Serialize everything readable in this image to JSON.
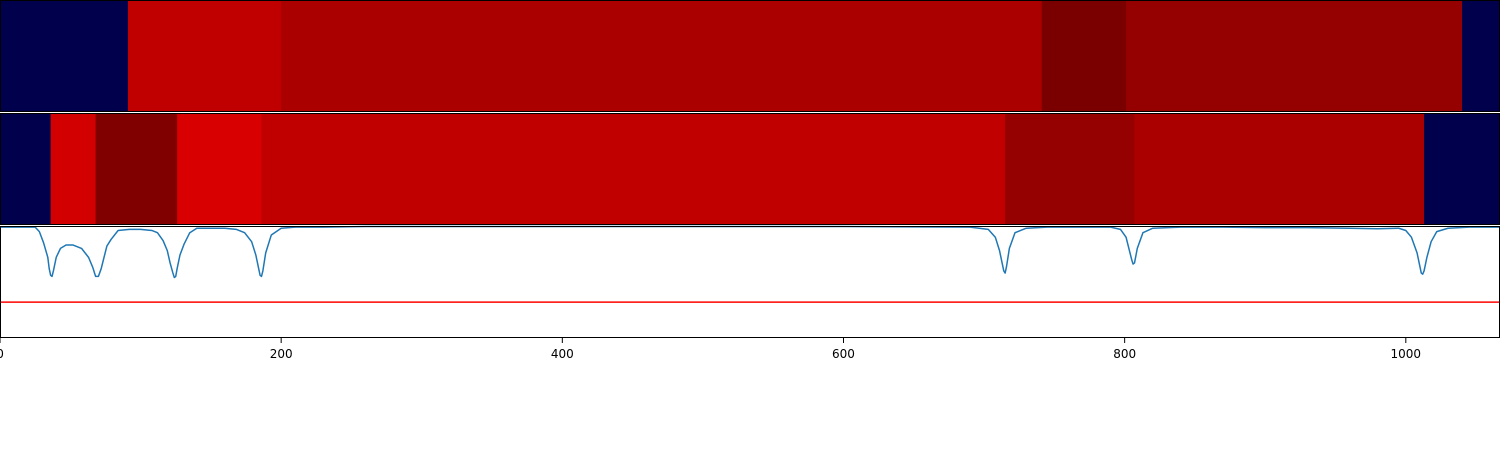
{
  "chart_data": [
    {
      "type": "heatmap",
      "panel": "top-strip",
      "xlim": [
        0,
        1067
      ],
      "colormap": "seismic",
      "segments": [
        {
          "x0": 0,
          "x1": 91,
          "color": "#00004c"
        },
        {
          "x0": 91,
          "x1": 200,
          "color": "#c00000"
        },
        {
          "x0": 200,
          "x1": 741,
          "color": "#ab0000"
        },
        {
          "x0": 741,
          "x1": 801,
          "color": "#7a0000"
        },
        {
          "x0": 801,
          "x1": 1040,
          "color": "#950000"
        },
        {
          "x0": 1040,
          "x1": 1067,
          "color": "#00004c"
        }
      ]
    },
    {
      "type": "heatmap",
      "panel": "middle-strip",
      "xlim": [
        0,
        1067
      ],
      "colormap": "seismic",
      "segments": [
        {
          "x0": 0,
          "x1": 36,
          "color": "#00004c"
        },
        {
          "x0": 36,
          "x1": 68,
          "color": "#d20000"
        },
        {
          "x0": 68,
          "x1": 126,
          "color": "#800000"
        },
        {
          "x0": 126,
          "x1": 186,
          "color": "#d80000"
        },
        {
          "x0": 186,
          "x1": 715,
          "color": "#c00000"
        },
        {
          "x0": 715,
          "x1": 807,
          "color": "#950000"
        },
        {
          "x0": 807,
          "x1": 1013,
          "color": "#aa0000"
        },
        {
          "x0": 1013,
          "x1": 1067,
          "color": "#00004c"
        }
      ]
    },
    {
      "type": "line",
      "panel": "bottom-signal",
      "xlim": [
        0,
        1067
      ],
      "ylim": [
        0,
        1
      ],
      "grid": false,
      "series": [
        {
          "color": "#1f77b4",
          "x": [
            0,
            25,
            28,
            31,
            34,
            35,
            36,
            37,
            38,
            40,
            43,
            47,
            52,
            58,
            63,
            66,
            68,
            70,
            72,
            74,
            76,
            79,
            84,
            92,
            100,
            108,
            112,
            116,
            119,
            121,
            123,
            124,
            125,
            126,
            128,
            131,
            135,
            140,
            147,
            153,
            160,
            168,
            174,
            179,
            182,
            184,
            185,
            186,
            187,
            189,
            193,
            200,
            210,
            230,
            260,
            300,
            400,
            500,
            600,
            690,
            703,
            708,
            711,
            713,
            714,
            715,
            716,
            718,
            722,
            730,
            745,
            770,
            790,
            797,
            801,
            803,
            805,
            806,
            807,
            809,
            813,
            820,
            840,
            870,
            900,
            930,
            960,
            980,
            995,
            1000,
            1004,
            1008,
            1010,
            1011,
            1012,
            1013,
            1015,
            1018,
            1022,
            1030,
            1045,
            1067
          ],
          "y": [
            0.99,
            0.99,
            0.95,
            0.85,
            0.72,
            0.62,
            0.56,
            0.55,
            0.6,
            0.72,
            0.8,
            0.83,
            0.83,
            0.8,
            0.72,
            0.63,
            0.55,
            0.55,
            0.62,
            0.72,
            0.82,
            0.88,
            0.96,
            0.97,
            0.97,
            0.96,
            0.94,
            0.87,
            0.78,
            0.67,
            0.58,
            0.54,
            0.55,
            0.62,
            0.74,
            0.84,
            0.94,
            0.98,
            0.98,
            0.98,
            0.98,
            0.97,
            0.94,
            0.86,
            0.74,
            0.62,
            0.56,
            0.55,
            0.6,
            0.76,
            0.92,
            0.98,
            0.99,
            0.99,
            0.995,
            0.995,
            0.995,
            0.995,
            0.995,
            0.99,
            0.97,
            0.9,
            0.78,
            0.66,
            0.6,
            0.58,
            0.64,
            0.8,
            0.94,
            0.98,
            0.99,
            0.99,
            0.99,
            0.97,
            0.9,
            0.8,
            0.7,
            0.66,
            0.67,
            0.8,
            0.94,
            0.98,
            0.99,
            0.99,
            0.985,
            0.985,
            0.98,
            0.975,
            0.98,
            0.96,
            0.9,
            0.76,
            0.64,
            0.58,
            0.57,
            0.6,
            0.72,
            0.86,
            0.95,
            0.98,
            0.99,
            0.99
          ]
        },
        {
          "color": "#ff0000",
          "x": [
            0,
            1067
          ],
          "y": [
            0.32,
            0.32
          ]
        }
      ],
      "x_ticks": [
        0,
        200,
        400,
        600,
        800,
        1000
      ],
      "x_tick_labels": [
        "0",
        "200",
        "400",
        "600",
        "800",
        "1000"
      ]
    }
  ]
}
